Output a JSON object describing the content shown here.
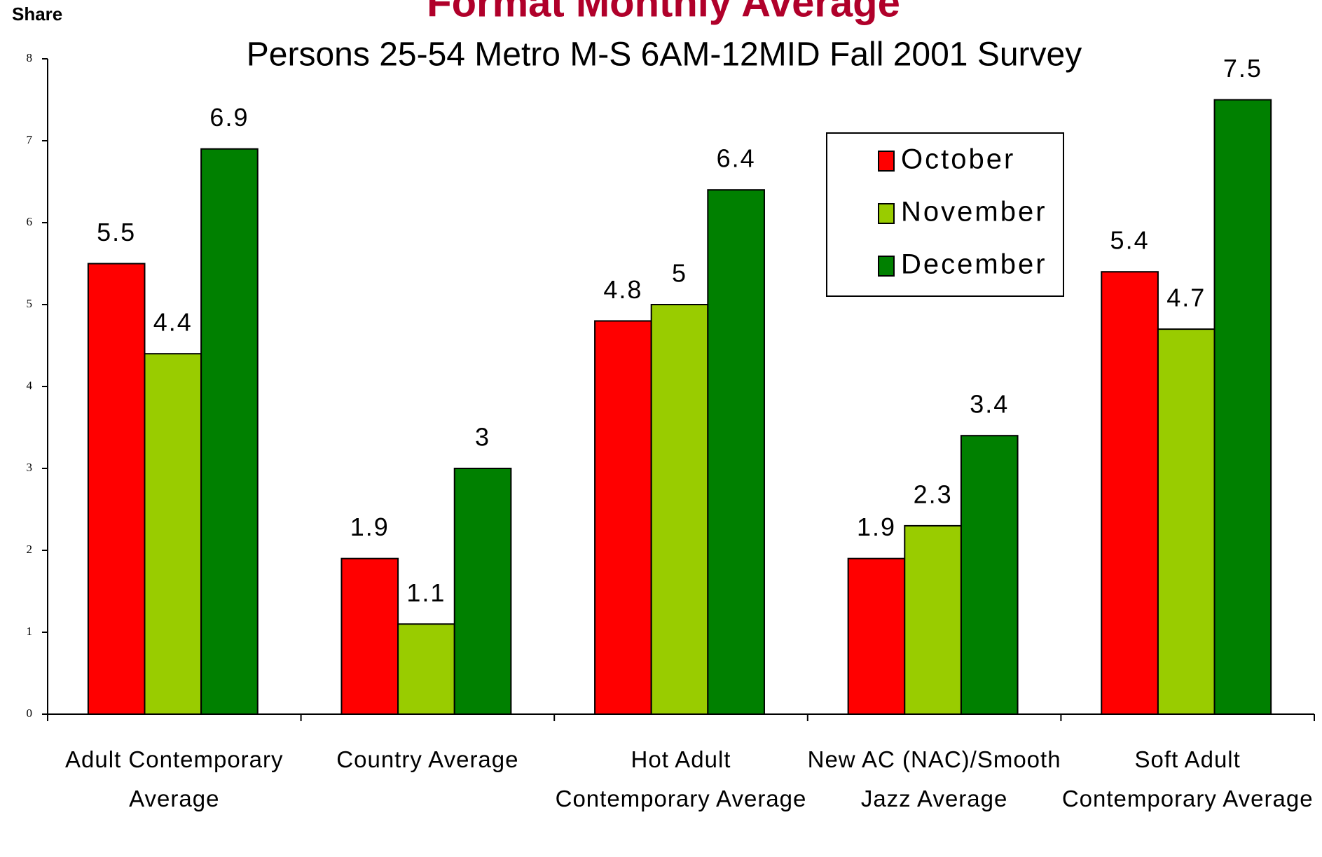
{
  "chart_data": {
    "type": "bar",
    "title": "Format Monthly Average",
    "subtitle": "Persons 25-54 Metro M-S 6AM-12MID Fall 2001 Survey",
    "y_label": "Share",
    "categories": [
      "Adult Contemporary Average",
      "Country Average",
      "Hot Adult Contemporary Average",
      "New AC (NAC)/Smooth Jazz Average",
      "Soft Adult Contemporary Average"
    ],
    "series": [
      {
        "name": "October",
        "color": "#ff0000",
        "values": [
          5.5,
          1.9,
          4.8,
          1.9,
          5.4
        ]
      },
      {
        "name": "November",
        "color": "#99cc00",
        "values": [
          4.4,
          1.1,
          5,
          2.3,
          4.7
        ]
      },
      {
        "name": "December",
        "color": "#008000",
        "values": [
          6.9,
          3,
          6.4,
          3.4,
          7.5
        ]
      }
    ],
    "ylim": [
      0,
      8
    ],
    "yticks": [
      0,
      1,
      2,
      3,
      4,
      5,
      6,
      7,
      8
    ],
    "grid": false,
    "legend": "upper right"
  }
}
